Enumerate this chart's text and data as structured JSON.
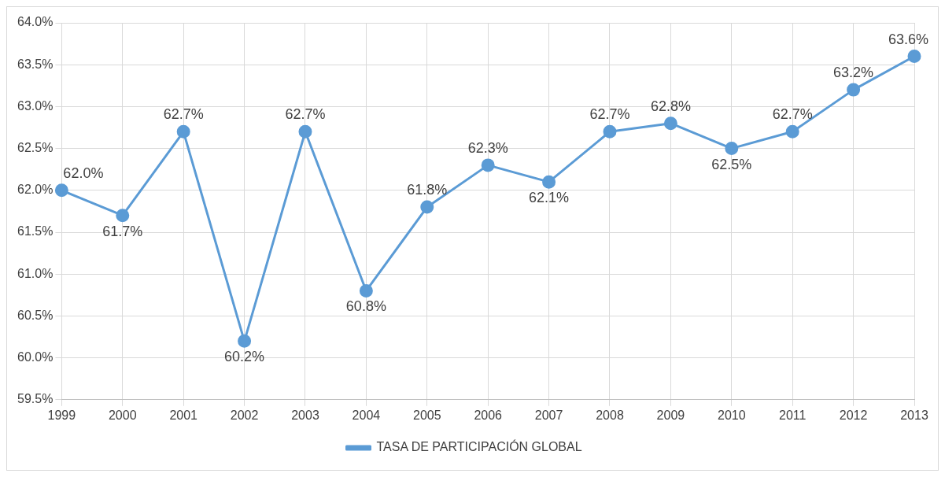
{
  "chart_data": {
    "type": "line",
    "categories": [
      "1999",
      "2000",
      "2001",
      "2002",
      "2003",
      "2004",
      "2005",
      "2006",
      "2007",
      "2008",
      "2009",
      "2010",
      "2011",
      "2012",
      "2013"
    ],
    "series": [
      {
        "name": "TASA DE PARTICIPACIÓN GLOBAL",
        "color": "#5b9bd5",
        "values": [
          62.0,
          61.7,
          62.7,
          60.2,
          62.7,
          60.8,
          61.8,
          62.3,
          62.1,
          62.7,
          62.8,
          62.5,
          62.7,
          63.2,
          63.6
        ],
        "value_labels": [
          "62.0%",
          "61.7%",
          "62.7%",
          "60.2%",
          "62.7%",
          "60.8%",
          "61.8%",
          "62.3%",
          "62.1%",
          "62.7%",
          "62.8%",
          "62.5%",
          "62.7%",
          "63.2%",
          "63.6%"
        ]
      }
    ],
    "ylim": [
      59.5,
      64.0
    ],
    "yticks": [
      {
        "value": 59.5,
        "label": "59.5%"
      },
      {
        "value": 60.0,
        "label": "60.0%"
      },
      {
        "value": 60.5,
        "label": "60.5%"
      },
      {
        "value": 61.0,
        "label": "61.0%"
      },
      {
        "value": 61.5,
        "label": "61.5%"
      },
      {
        "value": 62.0,
        "label": "62.0%"
      },
      {
        "value": 62.5,
        "label": "62.5%"
      },
      {
        "value": 63.0,
        "label": "63.0%"
      },
      {
        "value": 63.5,
        "label": "63.5%"
      },
      {
        "value": 64.0,
        "label": "64.0%"
      }
    ],
    "grid": true,
    "legend": "bottom",
    "marker": "circle",
    "line_style": "solid"
  }
}
